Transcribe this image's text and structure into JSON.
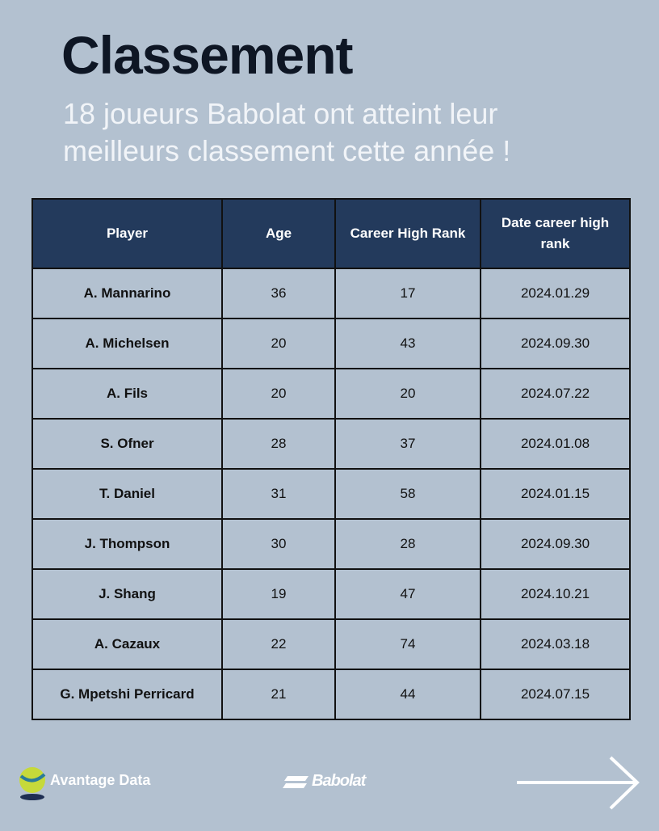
{
  "header": {
    "title": "Classement",
    "subtitle": "18 joueurs Babolat ont atteint leur meilleurs classement cette année !"
  },
  "table": {
    "columns": [
      "Player",
      "Age",
      "Career High Rank",
      "Date career high rank"
    ],
    "rows": [
      [
        "A. Mannarino",
        36,
        17,
        "2024.01.29"
      ],
      [
        "A. Michelsen",
        20,
        43,
        "2024.09.30"
      ],
      [
        "A. Fils",
        20,
        20,
        "2024.07.22"
      ],
      [
        "S. Ofner",
        28,
        37,
        "2024.01.08"
      ],
      [
        "T. Daniel",
        31,
        58,
        "2024.01.15"
      ],
      [
        "J. Thompson",
        30,
        28,
        "2024.09.30"
      ],
      [
        "J. Shang",
        19,
        47,
        "2024.10.21"
      ],
      [
        "A. Cazaux",
        22,
        74,
        "2024.03.18"
      ],
      [
        "G. Mpetshi Perricard",
        21,
        44,
        "2024.07.15"
      ]
    ]
  },
  "footer": {
    "brand": "Avantage Data",
    "partner": "Babolat"
  }
}
